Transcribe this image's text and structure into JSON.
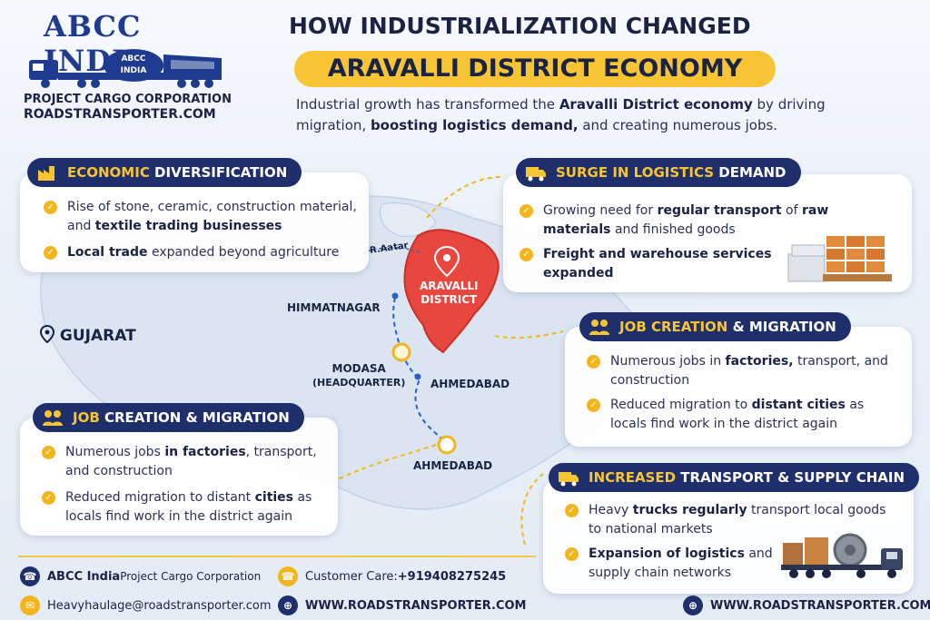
{
  "logo": {
    "brand": "ABCC INDIA",
    "badge_line1": "ABCC",
    "badge_line2": "INDIA",
    "subtitle": "PROJECT CARGO CORPORATION",
    "website": "ROADSTRANSPORTER.COM"
  },
  "header": {
    "title_line1": "HOW INDUSTRIALIZATION CHANGED",
    "title_line2": "ARAVALLI DISTRICT ECONOMY",
    "intro_parts": [
      "Industrial growth has transformed the ",
      "Aravalli District economy",
      " by driving migration, ",
      "boosting logistics demand,",
      " and creating numerous jobs."
    ]
  },
  "cards": {
    "economic": {
      "title_hl": "ECONOMIC",
      "title_rest": " DIVERSIFICATION",
      "b1": [
        "Rise of stone, ceramic, construction material, and ",
        "textile trading businesses",
        ""
      ],
      "b2": [
        "",
        "Local trade",
        " expanded beyond agriculture"
      ]
    },
    "logistics": {
      "title_hl": "SURGE IN LOGISTICS",
      "title_rest": " DEMAND",
      "b1": [
        "Growing need for ",
        "regular transport",
        " of ",
        "raw materials",
        " and finished goods"
      ],
      "b2": [
        "",
        "Freight and warehouse services expanded",
        ""
      ]
    },
    "jobs_right": {
      "title_hl": "JOB CREATION",
      "title_rest": " & MIGRATION",
      "b1": [
        "Numerous jobs in ",
        "factories,",
        " transport, and construction"
      ],
      "b2": [
        "Reduced migration to ",
        "distant cities",
        " as locals find work in the district again"
      ]
    },
    "jobs_left": {
      "title_hl": "JOB",
      "title_rest": " CREATION & MIGRATION",
      "b1": [
        "Numerous jobs ",
        "in factories",
        ", transport, and construction"
      ],
      "b2": [
        "Reduced migration to distant ",
        "cities",
        " as locals find work in the district again"
      ]
    },
    "transport": {
      "title_hl": "INCREASED",
      "title_rest": " TRANSPORT & SUPPLY CHAIN",
      "b1": [
        "Heavy ",
        "trucks regularly",
        " transport local goods to national markets"
      ],
      "b2": [
        "",
        "Expansion of logistics",
        " and supply chain networks"
      ]
    }
  },
  "map": {
    "river": "R.Aatar",
    "district_line1": "ARAVALLI",
    "district_line2": "DISTRICT",
    "himmatnagar": "HIMMATNAGAR",
    "modasa": "MODASA",
    "headquarter": "(HEADQUARTER)",
    "ahmedabad1": "AHMEDABAD",
    "ahmedabad2": "AHMEDABAD",
    "state": "GUJARAT"
  },
  "footer": {
    "company": "ABCC India",
    "company_rest": " Project Cargo Corporation",
    "care_label": "Customer Care: ",
    "care_number": "+919408275245",
    "email": "Heavyhaulage@roadstransporter.com",
    "website1": "WWW.ROADSTRANSPORTER.COM",
    "website2": "WWW.ROADSTRANSPORTER.COM"
  },
  "colors": {
    "navy": "#1f2f6b",
    "accent_yellow": "#f7c534",
    "district_red": "#e8473f"
  }
}
